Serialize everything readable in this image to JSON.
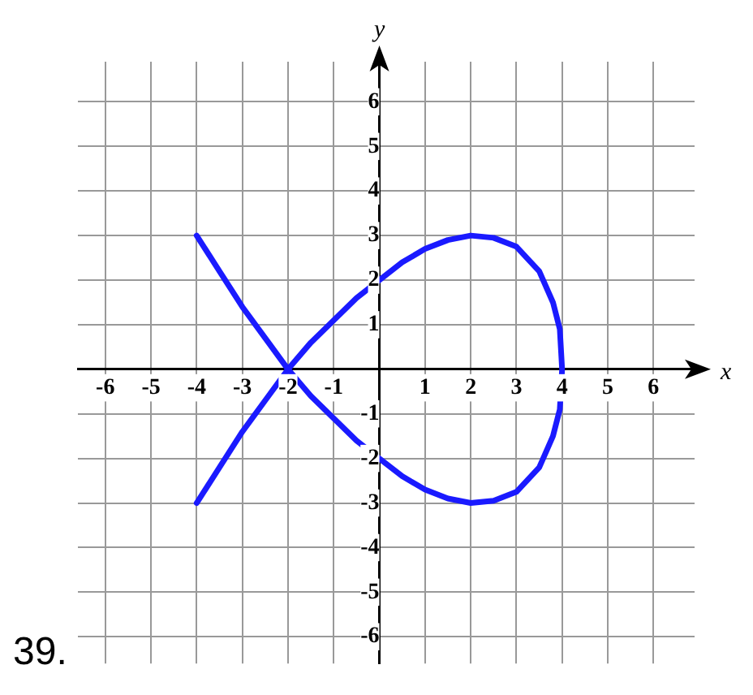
{
  "chart_data": {
    "type": "line",
    "xlabel": "x",
    "ylabel": "y",
    "annotations": [
      "39."
    ],
    "xlim": [
      -6.6,
      6.9
    ],
    "ylim": [
      -6.6,
      6.9
    ],
    "xticks": [
      -6,
      -5,
      -4,
      -3,
      -2,
      -1,
      1,
      2,
      3,
      4,
      5,
      6
    ],
    "yticks": [
      -6,
      -5,
      -4,
      -3,
      -2,
      -1,
      1,
      2,
      3,
      4,
      5,
      6
    ],
    "grid": true,
    "series": [
      {
        "color": "#1a1aff",
        "x": [
          -4,
          -3.5,
          -3,
          -2.5,
          -2,
          -1.5,
          -1,
          -0.5,
          0,
          0.5,
          1,
          1.5,
          2,
          2.5,
          3,
          3.5,
          3.8,
          3.95,
          4,
          3.95,
          3.8,
          3.5,
          3,
          2.5,
          2,
          1.5,
          1,
          0.5,
          0,
          -0.5,
          -1,
          -1.5,
          -2,
          -2.5,
          -3,
          -3.5,
          -4
        ],
        "values": [
          -3,
          -2.2,
          -1.4,
          -0.7,
          0,
          0.6,
          1.1,
          1.6,
          2,
          2.4,
          2.7,
          2.9,
          3,
          2.95,
          2.75,
          2.2,
          1.5,
          0.9,
          0,
          -0.9,
          -1.5,
          -2.2,
          -2.75,
          -2.95,
          -3,
          -2.9,
          -2.7,
          -2.4,
          -2,
          -1.6,
          -1.1,
          -0.6,
          0,
          0.7,
          1.4,
          2.2,
          3
        ]
      }
    ]
  }
}
